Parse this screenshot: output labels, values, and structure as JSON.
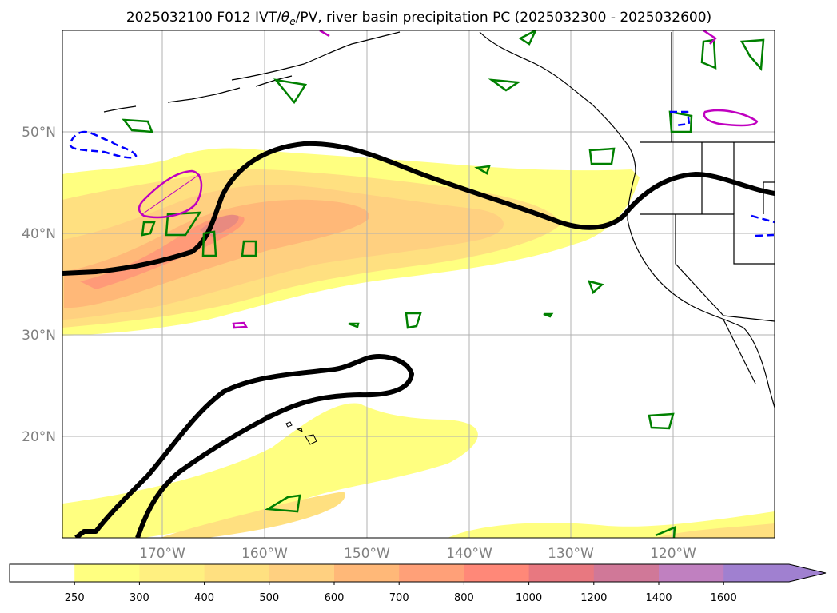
{
  "title": "2025032100 F012 IVT/θe/PV, river basin precipitation PC (2025032300 - 2025032600)",
  "title_parts": {
    "prefix": "2025032100 F012 IVT/",
    "theta": "θ",
    "sub": "e",
    "suffix": "/PV, river basin precipitation PC (2025032300 - 2025032600)"
  },
  "latitude_labels": [
    "50°N",
    "40°N",
    "30°N",
    "20°N"
  ],
  "longitude_labels": [
    "170°W",
    "160°W",
    "150°W",
    "140°W",
    "130°W",
    "120°W"
  ],
  "colorbar": {
    "ticks": [
      "250",
      "300",
      "400",
      "500",
      "600",
      "700",
      "800",
      "1000",
      "1200",
      "1400",
      "1600"
    ],
    "colors": [
      "#ffffff",
      "#ffff80",
      "#fff080",
      "#ffe080",
      "#ffd080",
      "#ffb878",
      "#ffa078",
      "#ff8878",
      "#e87880",
      "#d07898",
      "#c080c0",
      "#a080d0"
    ]
  },
  "contour_colors": {
    "pv_line": "#000000",
    "green_contours": "#008000",
    "blue_dashed": "#0000ff",
    "magenta": "#c000c0"
  }
}
